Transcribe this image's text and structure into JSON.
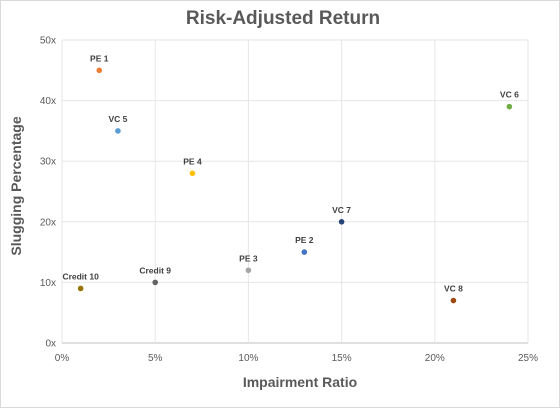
{
  "chart_data": {
    "type": "scatter",
    "title": "Risk-Adjusted Return",
    "xlabel": "Impairment Ratio",
    "ylabel": "Slugging Percentage",
    "xlim": [
      0,
      25
    ],
    "ylim": [
      0,
      50
    ],
    "x_ticks": [
      0,
      5,
      10,
      15,
      20,
      25
    ],
    "y_ticks": [
      0,
      10,
      20,
      30,
      40,
      50
    ],
    "x_tick_labels": [
      "0%",
      "5%",
      "10%",
      "15%",
      "20%",
      "25%"
    ],
    "y_tick_labels": [
      "0x",
      "10x",
      "20x",
      "30x",
      "40x",
      "50x"
    ],
    "grid": true,
    "legend": "none",
    "points": [
      {
        "label": "PE 1",
        "x": 2,
        "y": 45,
        "color": "#ed7d31"
      },
      {
        "label": "VC 5",
        "x": 3,
        "y": 35,
        "color": "#5b9bd5"
      },
      {
        "label": "PE 4",
        "x": 7,
        "y": 28,
        "color": "#ffc000"
      },
      {
        "label": "VC 6",
        "x": 24,
        "y": 39,
        "color": "#70ad47"
      },
      {
        "label": "VC 7",
        "x": 15,
        "y": 20,
        "color": "#264478"
      },
      {
        "label": "PE 2",
        "x": 13,
        "y": 15,
        "color": "#4472c4"
      },
      {
        "label": "PE 3",
        "x": 10,
        "y": 12,
        "color": "#a5a5a5"
      },
      {
        "label": "Credit 9",
        "x": 5,
        "y": 10,
        "color": "#636363"
      },
      {
        "label": "Credit 10",
        "x": 1,
        "y": 9,
        "color": "#997300"
      },
      {
        "label": "VC 8",
        "x": 21,
        "y": 7,
        "color": "#9e480e"
      }
    ]
  }
}
